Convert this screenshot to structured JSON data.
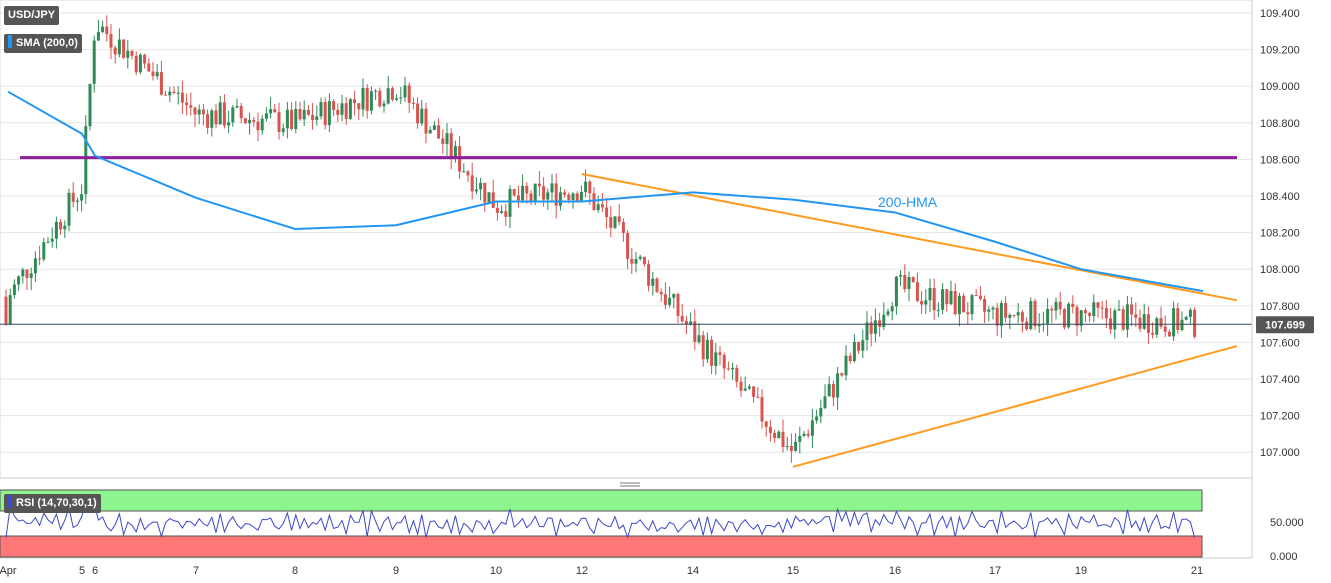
{
  "symbol_label": "USD/JPY",
  "indicator_label": "SMA (200,0)",
  "rsi_label": "RSI (14,70,30,1)",
  "hma_annotation": "200-HMA",
  "current_price": "107.699",
  "colors": {
    "up": "#2e8b57",
    "down": "#d9534f",
    "hma": "#2196f3",
    "resistance": "#8e1f9c",
    "trendline": "#ff9a1f",
    "rsi_overbought": "#8ef58e",
    "rsi_oversold": "#ff7777",
    "rsi_line": "#3c49c8",
    "tag_bg": "#555555"
  },
  "chart_data": {
    "type": "candlestick",
    "price_axis": {
      "min": 106.9,
      "max": 109.45,
      "ticks": [
        "109.400",
        "109.200",
        "109.000",
        "108.800",
        "108.600",
        "108.400",
        "108.200",
        "108.000",
        "107.800",
        "107.600",
        "107.400",
        "107.200",
        "107.000"
      ]
    },
    "time_axis_labels": [
      "Apr",
      "5",
      "6",
      "7",
      "8",
      "9",
      "10",
      "12",
      "14",
      "15",
      "16",
      "17",
      "19",
      "21"
    ],
    "horizontal_resistance": 108.61,
    "upper_trendline": {
      "from": {
        "x": "12",
        "price": 108.52
      },
      "to": {
        "x": "21",
        "price": 107.83
      }
    },
    "lower_trendline": {
      "from": {
        "x": "15",
        "price": 106.92
      },
      "to": {
        "x": "21",
        "price": 107.58
      }
    },
    "hma_200_path": [
      {
        "x": "Apr",
        "price": 108.97
      },
      {
        "x": "5",
        "price": 108.74
      },
      {
        "x": "6",
        "price": 108.62
      },
      {
        "x": "7",
        "price": 108.39
      },
      {
        "x": "8",
        "price": 108.22
      },
      {
        "x": "9",
        "price": 108.24
      },
      {
        "x": "10",
        "price": 108.37
      },
      {
        "x": "12",
        "price": 108.37
      },
      {
        "x": "14",
        "price": 108.42
      },
      {
        "x": "15",
        "price": 108.38
      },
      {
        "x": "16",
        "price": 108.31
      },
      {
        "x": "17",
        "price": 108.15
      },
      {
        "x": "19",
        "price": 108.0
      },
      {
        "x": "21",
        "price": 107.88
      }
    ],
    "price_path_keypoints": [
      {
        "x": "Apr",
        "price": 107.85
      },
      {
        "x": "5",
        "price": 108.45
      },
      {
        "x": "6",
        "price": 109.35
      },
      {
        "x": "7",
        "price": 108.85
      },
      {
        "x": "8",
        "price": 108.8
      },
      {
        "x": "9",
        "price": 109.0
      },
      {
        "x": "10",
        "price": 108.35
      },
      {
        "x": "12",
        "price": 108.45
      },
      {
        "x": "14",
        "price": 107.65
      },
      {
        "x": "15",
        "price": 107.0
      },
      {
        "x": "16",
        "price": 107.9
      },
      {
        "x": "17",
        "price": 107.75
      },
      {
        "x": "19",
        "price": 107.75
      },
      {
        "x": "21",
        "price": 107.7
      }
    ],
    "rsi": {
      "axis_ticks": [
        "50.000",
        "0.000"
      ],
      "overbought": 70,
      "oversold": 30,
      "approx_last": 50
    }
  }
}
